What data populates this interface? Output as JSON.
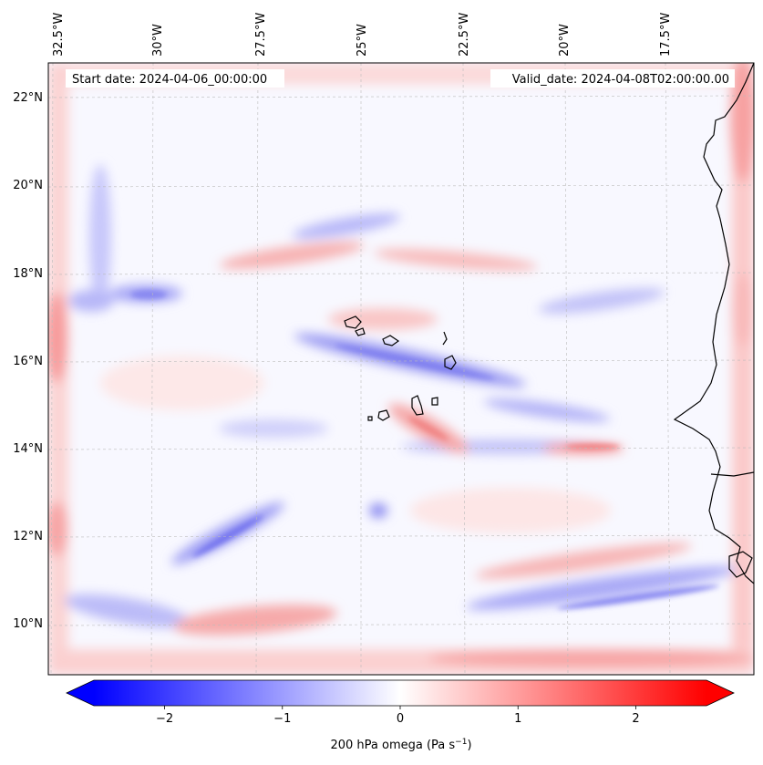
{
  "map": {
    "start_date_label": "Start date: 2024-04-06_00:00:00",
    "valid_date_label": "Valid_date: 2024-04-08T02:00:00.00",
    "lon_labels": [
      "32.5°W",
      "30°W",
      "27.5°W",
      "25°W",
      "22.5°W",
      "20°W",
      "17.5°W"
    ],
    "lat_labels": [
      "22°N",
      "20°N",
      "18°N",
      "16°N",
      "14°N",
      "12°N",
      "10°N"
    ],
    "variable": "200 hPa omega",
    "units": "Pa s⁻¹",
    "extent": {
      "lon_min": -32.6,
      "lon_max": -15.4,
      "lat_min": 8.9,
      "lat_max": 22.8
    },
    "gridlines": true,
    "coastlines": true
  },
  "colorbar": {
    "label_main": "200 hPa omega (Pa s",
    "label_exp": "−1",
    "label_close": ")",
    "ticks": [
      -2,
      -1,
      0,
      1,
      2
    ],
    "tick_labels": [
      "−2",
      "−1",
      "0",
      "1",
      "2"
    ],
    "range": [
      -2.6,
      2.6
    ],
    "extend": "both",
    "colormap": "bwr",
    "colors": {
      "negative": "#0000ff",
      "zero": "#ffffff",
      "positive": "#ff0000"
    }
  }
}
